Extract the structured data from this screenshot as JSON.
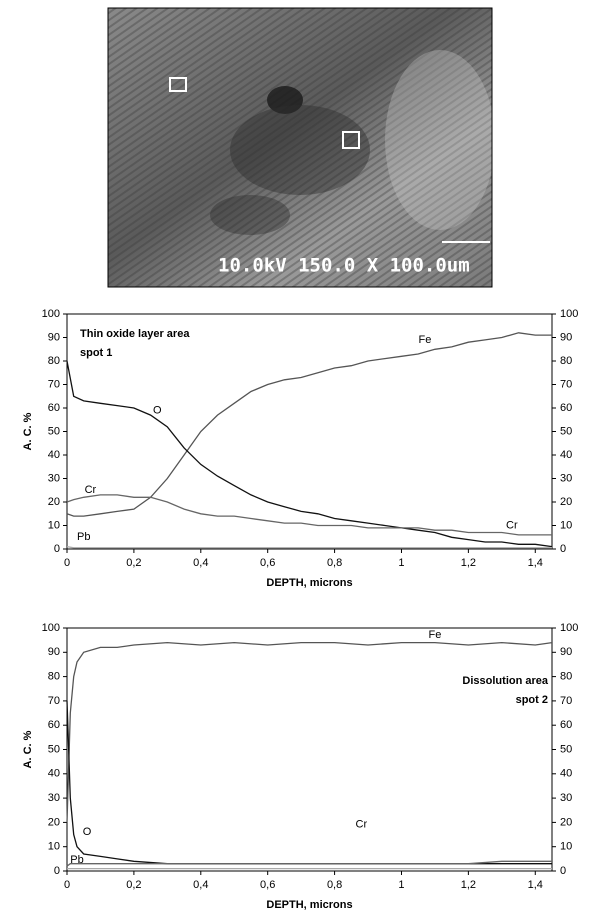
{
  "micrograph": {
    "caption": "10.0kV 150.0 X 100.0um"
  },
  "chart_data": [
    {
      "type": "line",
      "annotations": [
        "Thin oxide layer area",
        "spot 1"
      ],
      "x_label": "DEPTH, microns",
      "y_label": "A. C. %",
      "x": [
        0,
        0.02,
        0.05,
        0.1,
        0.15,
        0.2,
        0.25,
        0.3,
        0.35,
        0.4,
        0.45,
        0.5,
        0.55,
        0.6,
        0.65,
        0.7,
        0.75,
        0.8,
        0.85,
        0.9,
        0.95,
        1.0,
        1.05,
        1.1,
        1.15,
        1.2,
        1.25,
        1.3,
        1.35,
        1.4,
        1.45
      ],
      "series": [
        {
          "name": "Fe",
          "color": "#555555",
          "values": [
            15,
            14,
            14,
            15,
            16,
            17,
            22,
            30,
            40,
            50,
            57,
            62,
            67,
            70,
            72,
            73,
            75,
            77,
            78,
            80,
            81,
            82,
            83,
            85,
            86,
            88,
            89,
            90,
            92,
            91,
            91
          ]
        },
        {
          "name": "O",
          "color": "#111111",
          "values": [
            80,
            65,
            63,
            62,
            61,
            60,
            57,
            52,
            43,
            36,
            31,
            27,
            23,
            20,
            18,
            16,
            15,
            13,
            12,
            11,
            10,
            9,
            8,
            7,
            5,
            4,
            3,
            3,
            2,
            2,
            1
          ]
        },
        {
          "name": "Cr",
          "color": "#666666",
          "values": [
            20,
            21,
            22,
            23,
            23,
            22,
            22,
            20,
            17,
            15,
            14,
            14,
            13,
            12,
            11,
            11,
            10,
            10,
            10,
            9,
            9,
            9,
            9,
            8,
            8,
            7,
            7,
            7,
            6,
            6,
            6
          ]
        },
        {
          "name": "Pb",
          "color": "#aaaaaa",
          "values": [
            1,
            0.5,
            0.5,
            0.5,
            0.5,
            0.5,
            0.5,
            0.5,
            0.5,
            0.5,
            0.5,
            0.5,
            0.5,
            0.5,
            0.5,
            0.5,
            0.5,
            0.5,
            0.5,
            0.5,
            0.5,
            0.5,
            0.5,
            0.5,
            0.5,
            0.5,
            0.5,
            0.5,
            0.5,
            0.5,
            0.5
          ]
        }
      ],
      "xlim": [
        0,
        1.45
      ],
      "xticks": [
        0,
        {
          "value": 0.2,
          "label": "0,2"
        },
        {
          "value": 0.4,
          "label": "0,4"
        },
        {
          "value": 0.6,
          "label": "0,6"
        },
        {
          "value": 0.8,
          "label": "0,8"
        },
        1,
        {
          "value": 1.2,
          "label": "1,2"
        },
        {
          "value": 1.4,
          "label": "1,4"
        }
      ],
      "ylim": [
        0,
        100
      ],
      "yticks": [
        0,
        10,
        20,
        30,
        40,
        50,
        60,
        70,
        80,
        90,
        100
      ],
      "y2lim": [
        0,
        100
      ],
      "y2ticks": [
        0,
        10,
        20,
        30,
        40,
        50,
        60,
        70,
        80,
        90,
        100
      ]
    },
    {
      "type": "line",
      "annotations": [
        "Dissolution area",
        "spot 2"
      ],
      "x_label": "DEPTH, microns",
      "y_label": "A. C. %",
      "x": [
        0,
        0.01,
        0.02,
        0.03,
        0.05,
        0.1,
        0.15,
        0.2,
        0.3,
        0.4,
        0.5,
        0.6,
        0.7,
        0.8,
        0.9,
        1.0,
        1.1,
        1.2,
        1.3,
        1.4,
        1.45
      ],
      "series": [
        {
          "name": "Fe",
          "color": "#555555",
          "values": [
            20,
            65,
            80,
            86,
            90,
            92,
            92,
            93,
            94,
            93,
            94,
            93,
            94,
            94,
            93,
            94,
            94,
            93,
            94,
            93,
            94
          ]
        },
        {
          "name": "O",
          "color": "#111111",
          "values": [
            70,
            30,
            15,
            10,
            7,
            6,
            5,
            4,
            3,
            3,
            3,
            3,
            3,
            3,
            3,
            3,
            3,
            3,
            3,
            3,
            3
          ]
        },
        {
          "name": "Cr",
          "color": "#666666",
          "values": [
            2,
            3,
            3,
            3,
            3,
            3,
            3,
            3,
            3,
            3,
            3,
            3,
            3,
            3,
            3,
            3,
            3,
            3,
            4,
            4,
            4
          ]
        },
        {
          "name": "Pb",
          "color": "#aaaaaa",
          "values": [
            1,
            1,
            1,
            1,
            1,
            1,
            1,
            1,
            1,
            1,
            1,
            1,
            1,
            1,
            1,
            1,
            1,
            1,
            1,
            1,
            1
          ]
        }
      ],
      "xlim": [
        0,
        1.45
      ],
      "xticks": [
        0,
        {
          "value": 0.2,
          "label": "0,2"
        },
        {
          "value": 0.4,
          "label": "0,4"
        },
        {
          "value": 0.6,
          "label": "0,6"
        },
        {
          "value": 0.8,
          "label": "0,8"
        },
        1,
        {
          "value": 1.2,
          "label": "1,2"
        },
        {
          "value": 1.4,
          "label": "1,4"
        }
      ],
      "ylim": [
        0,
        100
      ],
      "yticks": [
        0,
        10,
        20,
        30,
        40,
        50,
        60,
        70,
        80,
        90,
        100
      ],
      "y2lim": [
        0,
        100
      ],
      "y2ticks": [
        0,
        10,
        20,
        30,
        40,
        50,
        60,
        70,
        80,
        90,
        100
      ]
    }
  ]
}
